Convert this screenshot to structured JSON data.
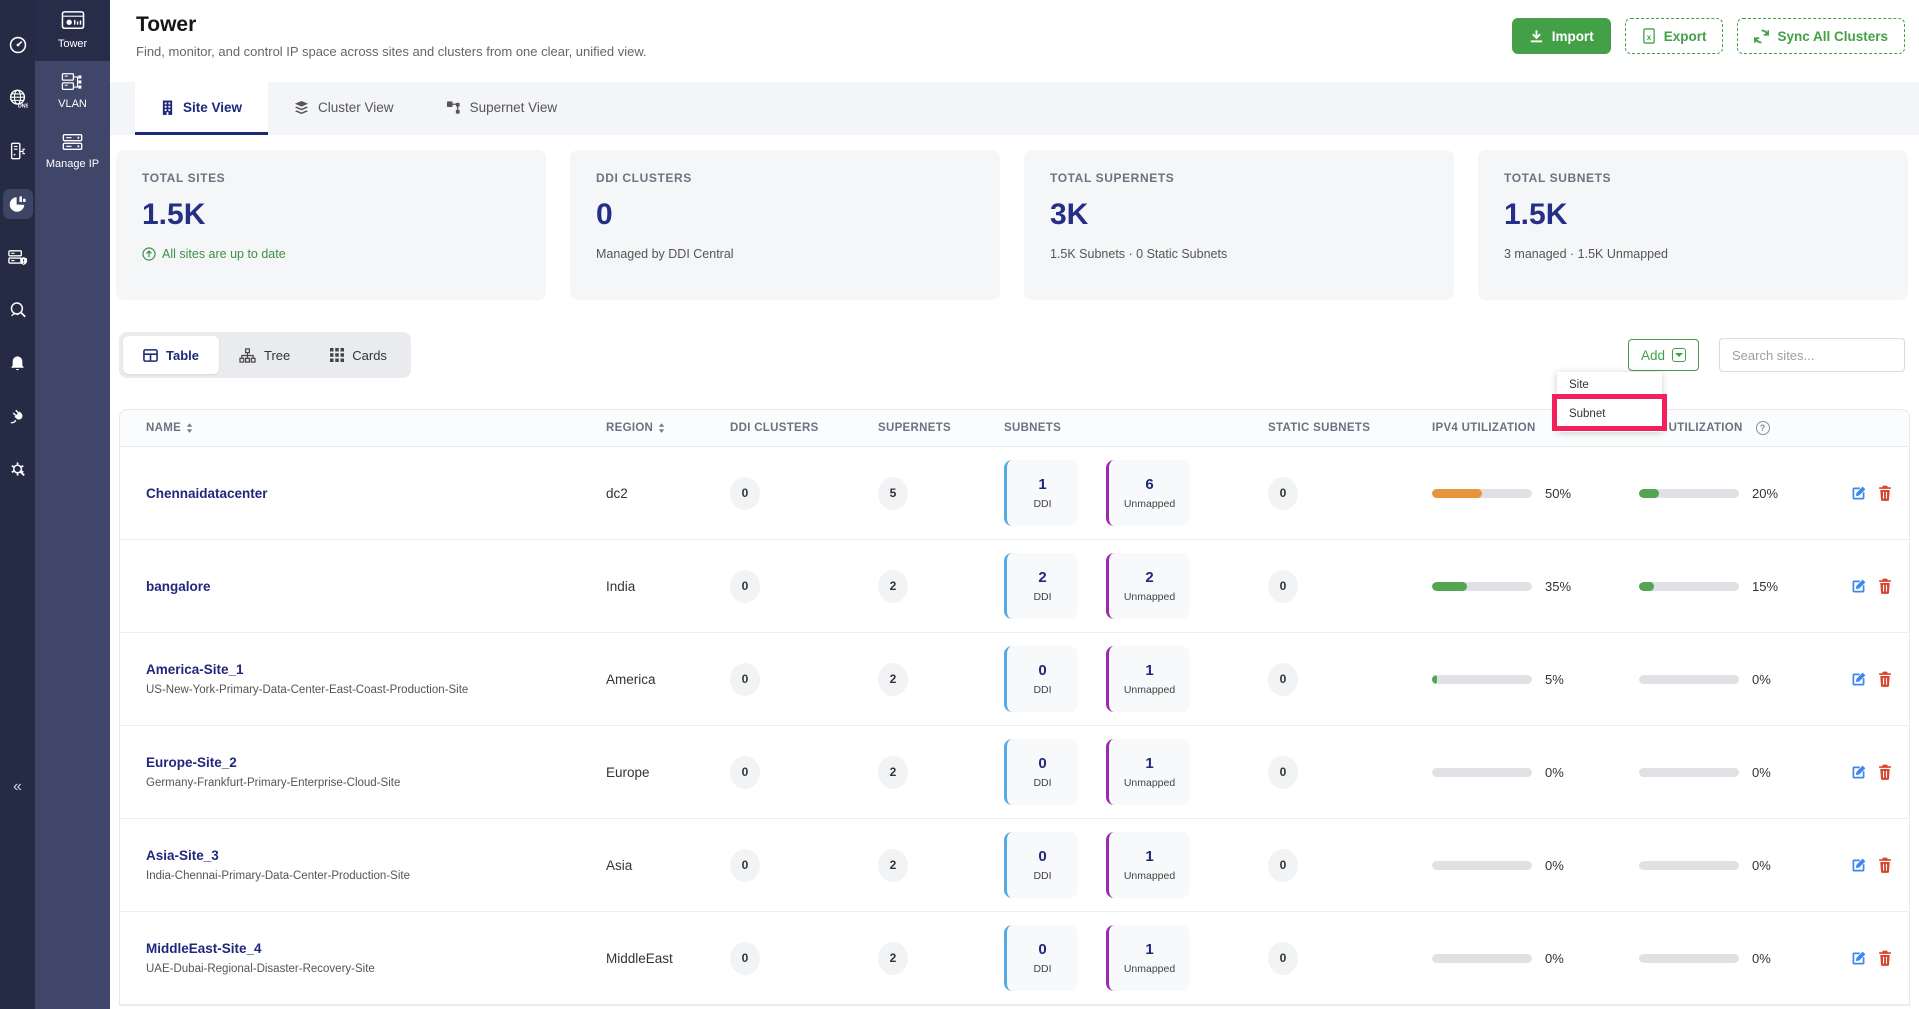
{
  "app": {
    "modules": [
      {
        "label": "Tower",
        "active": true
      },
      {
        "label": "VLAN",
        "active": false
      },
      {
        "label": "Manage IP",
        "active": false
      }
    ]
  },
  "header": {
    "title": "Tower",
    "subtitle": "Find, monitor, and control IP space across sites and clusters from one clear, unified view.",
    "import_label": "Import",
    "export_label": "Export",
    "sync_label": "Sync All Clusters"
  },
  "tabs": [
    {
      "label": "Site View",
      "active": true
    },
    {
      "label": "Cluster View",
      "active": false
    },
    {
      "label": "Supernet View",
      "active": false
    }
  ],
  "stats": [
    {
      "label": "TOTAL SITES",
      "value": "1.5K",
      "sub": "All sites are up to date",
      "status": "success"
    },
    {
      "label": "DDI CLUSTERS",
      "value": "0",
      "sub": "Managed by DDI Central",
      "status": "muted"
    },
    {
      "label": "TOTAL SUPERNETS",
      "value": "3K",
      "sub": "1.5K Subnets · 0 Static Subnets",
      "status": "muted"
    },
    {
      "label": "TOTAL SUBNETS",
      "value": "1.5K",
      "sub": "3 managed · 1.5K Unmapped",
      "status": "muted"
    }
  ],
  "controls": {
    "views": [
      {
        "label": "Table",
        "active": true
      },
      {
        "label": "Tree",
        "active": false
      },
      {
        "label": "Cards",
        "active": false
      }
    ],
    "add_label": "Add",
    "search_placeholder": "Search sites..."
  },
  "add_menu": {
    "items": [
      {
        "label": "Site",
        "highlighted": false
      },
      {
        "label": "Subnet",
        "highlighted": true
      }
    ]
  },
  "table": {
    "headers": [
      {
        "label": "NAME",
        "sortable": true
      },
      {
        "label": "REGION",
        "sortable": true
      },
      {
        "label": "DDI CLUSTERS"
      },
      {
        "label": "SUPERNETS"
      },
      {
        "label": "SUBNETS"
      },
      {
        "label": "STATIC SUBNETS"
      },
      {
        "label": "IPV4 UTILIZATION"
      },
      {
        "label": "IPV6 UTILIZATION",
        "help": true
      }
    ],
    "card_labels": {
      "ddi": "DDI",
      "unmapped": "Unmapped"
    },
    "rows": [
      {
        "name": "Chennaidatacenter",
        "desc": "",
        "region": "dc2",
        "ddi_clusters": "0",
        "supernets": "5",
        "subnets": {
          "ddi": "1",
          "unmapped": "6"
        },
        "static_subnets": "0",
        "ipv4": {
          "percent": 50,
          "label": "50%",
          "color": "orange"
        },
        "ipv6": {
          "percent": 20,
          "label": "20%",
          "color": "green"
        }
      },
      {
        "name": "bangalore",
        "desc": "",
        "region": "India",
        "ddi_clusters": "0",
        "supernets": "2",
        "subnets": {
          "ddi": "2",
          "unmapped": "2"
        },
        "static_subnets": "0",
        "ipv4": {
          "percent": 35,
          "label": "35%",
          "color": "green"
        },
        "ipv6": {
          "percent": 15,
          "label": "15%",
          "color": "green"
        }
      },
      {
        "name": "America-Site_1",
        "desc": "US-New-York-Primary-Data-Center-East-Coast-Production-Site",
        "region": "America",
        "ddi_clusters": "0",
        "supernets": "2",
        "subnets": {
          "ddi": "0",
          "unmapped": "1"
        },
        "static_subnets": "0",
        "ipv4": {
          "percent": 5,
          "label": "5%",
          "color": "green"
        },
        "ipv6": {
          "percent": 0,
          "label": "0%",
          "color": "green"
        }
      },
      {
        "name": "Europe-Site_2",
        "desc": "Germany-Frankfurt-Primary-Enterprise-Cloud-Site",
        "region": "Europe",
        "ddi_clusters": "0",
        "supernets": "2",
        "subnets": {
          "ddi": "0",
          "unmapped": "1"
        },
        "static_subnets": "0",
        "ipv4": {
          "percent": 0,
          "label": "0%",
          "color": "green"
        },
        "ipv6": {
          "percent": 0,
          "label": "0%",
          "color": "green"
        }
      },
      {
        "name": "Asia-Site_3",
        "desc": "India-Chennai-Primary-Data-Center-Production-Site",
        "region": "Asia",
        "ddi_clusters": "0",
        "supernets": "2",
        "subnets": {
          "ddi": "0",
          "unmapped": "1"
        },
        "static_subnets": "0",
        "ipv4": {
          "percent": 0,
          "label": "0%",
          "color": "green"
        },
        "ipv6": {
          "percent": 0,
          "label": "0%",
          "color": "green"
        }
      },
      {
        "name": "MiddleEast-Site_4",
        "desc": "UAE-Dubai-Regional-Disaster-Recovery-Site",
        "region": "MiddleEast",
        "ddi_clusters": "0",
        "supernets": "2",
        "subnets": {
          "ddi": "0",
          "unmapped": "1"
        },
        "static_subnets": "0",
        "ipv4": {
          "percent": 0,
          "label": "0%",
          "color": "green"
        },
        "ipv6": {
          "percent": 0,
          "label": "0%",
          "color": "green"
        }
      }
    ]
  },
  "colors": {
    "orange": "#e8943c",
    "green": "#53a551",
    "accent_green": "#43a047",
    "indigo": "#20277c",
    "annotation": "#f2215c"
  }
}
